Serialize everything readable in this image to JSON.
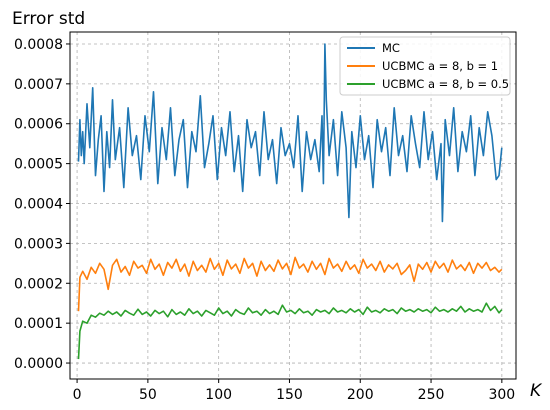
{
  "chart_data": {
    "type": "line",
    "title": "",
    "ylabel": "Error std",
    "xlabel": "K",
    "xlim": [
      -5,
      310
    ],
    "ylim": [
      -4e-05,
      0.00083
    ],
    "x_ticks": [
      0,
      50,
      100,
      150,
      200,
      250,
      300
    ],
    "x_tick_labels": [
      "0",
      "50",
      "100",
      "150",
      "200",
      "250",
      "300"
    ],
    "y_ticks": [
      0.0,
      0.0001,
      0.0002,
      0.0003,
      0.0004,
      0.0005,
      0.0006,
      0.0007,
      0.0008
    ],
    "y_tick_labels": [
      "0.0000",
      "0.0001",
      "0.0002",
      "0.0003",
      "0.0004",
      "0.0005",
      "0.0006",
      "0.0007",
      "0.0008"
    ],
    "grid": true,
    "legend_position": "top-right",
    "series": [
      {
        "name": "MC",
        "color": "#1f77b4",
        "x": [
          1,
          2,
          3,
          4,
          5,
          7,
          9,
          11,
          13,
          15,
          17,
          19,
          21,
          23,
          25,
          27,
          30,
          33,
          36,
          39,
          42,
          45,
          48,
          51,
          54,
          57,
          60,
          63,
          66,
          69,
          72,
          75,
          78,
          81,
          84,
          87,
          90,
          93,
          96,
          99,
          102,
          105,
          108,
          111,
          114,
          117,
          120,
          123,
          126,
          129,
          132,
          135,
          138,
          141,
          144,
          147,
          150,
          153,
          156,
          159,
          162,
          165,
          168,
          171,
          173,
          174,
          175,
          176,
          178,
          181,
          184,
          187,
          190,
          192,
          194,
          197,
          200,
          203,
          206,
          209,
          212,
          215,
          218,
          221,
          224,
          227,
          230,
          233,
          236,
          239,
          242,
          245,
          248,
          251,
          254,
          257,
          258,
          260,
          263,
          266,
          269,
          272,
          275,
          278,
          281,
          284,
          287,
          290,
          293,
          296,
          298,
          300
        ],
        "values": [
          0.000505,
          0.00061,
          0.00052,
          0.00058,
          0.0005,
          0.00065,
          0.00054,
          0.00069,
          0.00047,
          0.00056,
          0.00062,
          0.00043,
          0.00058,
          0.00049,
          0.00066,
          0.00051,
          0.00059,
          0.00044,
          0.00064,
          0.00052,
          0.00057,
          0.00046,
          0.00062,
          0.00053,
          0.00068,
          0.00045,
          0.00059,
          0.00051,
          0.00064,
          0.00047,
          0.00056,
          0.00061,
          0.00044,
          0.00058,
          0.00053,
          0.00067,
          0.00049,
          0.00055,
          0.00062,
          0.00046,
          0.00059,
          0.00052,
          0.00063,
          0.00048,
          0.00057,
          0.00043,
          0.00061,
          0.00054,
          0.00058,
          0.00047,
          0.00063,
          0.00051,
          0.00056,
          0.00045,
          0.00059,
          0.00052,
          0.00055,
          0.00049,
          0.00062,
          0.00043,
          0.00058,
          0.00051,
          0.00056,
          0.00048,
          0.00062,
          0.00045,
          0.0008,
          0.00066,
          0.00052,
          0.00061,
          0.00047,
          0.00063,
          0.00054,
          0.000365,
          0.00058,
          0.00049,
          0.00062,
          0.00051,
          0.00057,
          0.00044,
          0.00061,
          0.00053,
          0.00059,
          0.00047,
          0.00064,
          0.00052,
          0.00057,
          0.00048,
          0.00062,
          0.00055,
          0.00049,
          0.00063,
          0.00051,
          0.00058,
          0.00046,
          0.00055,
          0.000355,
          0.00061,
          0.00052,
          0.00064,
          0.00048,
          0.00058,
          0.00053,
          0.00062,
          0.00047,
          0.00059,
          0.00052,
          0.00063,
          0.00057,
          0.00046,
          0.00047,
          0.00054
        ]
      },
      {
        "name": "UCBMC a = 8, b = 1",
        "color": "#ff7f0e",
        "x": [
          1,
          2,
          4,
          7,
          10,
          13,
          16,
          19,
          22,
          25,
          28,
          31,
          34,
          37,
          40,
          43,
          46,
          49,
          52,
          55,
          58,
          61,
          64,
          67,
          70,
          73,
          76,
          79,
          82,
          85,
          88,
          91,
          94,
          97,
          100,
          103,
          106,
          109,
          112,
          115,
          118,
          121,
          124,
          127,
          130,
          133,
          136,
          139,
          142,
          145,
          148,
          151,
          154,
          157,
          160,
          163,
          166,
          169,
          172,
          175,
          178,
          181,
          184,
          187,
          190,
          193,
          196,
          199,
          202,
          205,
          208,
          211,
          214,
          217,
          220,
          223,
          226,
          229,
          232,
          235,
          238,
          241,
          244,
          247,
          250,
          253,
          256,
          259,
          262,
          265,
          268,
          271,
          274,
          277,
          280,
          283,
          286,
          289,
          292,
          295,
          298,
          300
        ],
        "values": [
          0.00013,
          0.000215,
          0.00023,
          0.00021,
          0.00024,
          0.000225,
          0.00025,
          0.000235,
          0.000185,
          0.000245,
          0.00026,
          0.000228,
          0.000242,
          0.00022,
          0.000255,
          0.000238,
          0.000245,
          0.000225,
          0.00026,
          0.000235,
          0.000248,
          0.00022,
          0.000252,
          0.000238,
          0.00026,
          0.00023,
          0.000248,
          0.000218,
          0.000255,
          0.000232,
          0.000245,
          0.000228,
          0.000262,
          0.000235,
          0.00025,
          0.00022,
          0.000258,
          0.000236,
          0.000248,
          0.000225,
          0.000262,
          0.000238,
          0.00025,
          0.000218,
          0.000255,
          0.000232,
          0.000246,
          0.00023,
          0.000258,
          0.000236,
          0.00025,
          0.000222,
          0.000265,
          0.000238,
          0.000248,
          0.000228,
          0.000255,
          0.000235,
          0.00025,
          0.000222,
          0.000262,
          0.000238,
          0.000248,
          0.00023,
          0.000255,
          0.000235,
          0.000246,
          0.000225,
          0.00026,
          0.000238,
          0.000248,
          0.000232,
          0.000255,
          0.000228,
          0.000246,
          0.000236,
          0.00025,
          0.000222,
          0.000232,
          0.000246,
          0.000205,
          0.000248,
          0.000235,
          0.000252,
          0.000228,
          0.000255,
          0.000238,
          0.00025,
          0.000228,
          0.000258,
          0.000236,
          0.000246,
          0.000232,
          0.000252,
          0.000225,
          0.00025,
          0.000238,
          0.000252,
          0.000232,
          0.00024,
          0.000228,
          0.000235
        ]
      },
      {
        "name": "UCBMC a = 8, b = 0.5",
        "color": "#2ca02c",
        "x": [
          1,
          2,
          4,
          7,
          10,
          13,
          16,
          19,
          22,
          25,
          28,
          31,
          34,
          37,
          40,
          43,
          46,
          49,
          52,
          55,
          58,
          61,
          64,
          67,
          70,
          73,
          76,
          79,
          82,
          85,
          88,
          91,
          94,
          97,
          100,
          103,
          106,
          109,
          112,
          115,
          118,
          121,
          124,
          127,
          130,
          133,
          136,
          139,
          142,
          145,
          148,
          151,
          154,
          157,
          160,
          163,
          166,
          169,
          172,
          175,
          178,
          181,
          184,
          187,
          190,
          193,
          196,
          199,
          202,
          205,
          208,
          211,
          214,
          217,
          220,
          223,
          226,
          229,
          232,
          235,
          238,
          241,
          244,
          247,
          250,
          253,
          256,
          259,
          262,
          265,
          268,
          271,
          274,
          277,
          280,
          283,
          286,
          289,
          292,
          295,
          298,
          300
        ],
        "values": [
          1e-05,
          8e-05,
          0.000105,
          0.0001,
          0.00012,
          0.000115,
          0.000125,
          0.00012,
          0.00013,
          0.000122,
          0.000128,
          0.000118,
          0.000132,
          0.000125,
          0.00012,
          0.000135,
          0.000122,
          0.000128,
          0.000118,
          0.000132,
          0.000124,
          0.00013,
          0.000116,
          0.000134,
          0.000122,
          0.000128,
          0.00012,
          0.000136,
          0.000124,
          0.00013,
          0.000118,
          0.000132,
          0.000126,
          0.00012,
          0.000138,
          0.000124,
          0.00013,
          0.000118,
          0.000134,
          0.000126,
          0.000122,
          0.000138,
          0.000126,
          0.00013,
          0.00012,
          0.000134,
          0.000124,
          0.00013,
          0.000122,
          0.000145,
          0.000128,
          0.000132,
          0.000124,
          0.000136,
          0.000126,
          0.00013,
          0.00012,
          0.000134,
          0.000128,
          0.000132,
          0.000124,
          0.000138,
          0.000128,
          0.000132,
          0.000126,
          0.000136,
          0.000128,
          0.000134,
          0.000122,
          0.00014,
          0.000128,
          0.000132,
          0.000126,
          0.000136,
          0.00013,
          0.000134,
          0.000124,
          0.000138,
          0.00013,
          0.000134,
          0.000128,
          0.000136,
          0.00013,
          0.000134,
          0.000126,
          0.00014,
          0.00013,
          0.000134,
          0.000128,
          0.000136,
          0.00013,
          0.000142,
          0.000128,
          0.000136,
          0.00013,
          0.000134,
          0.000128,
          0.00015,
          0.000132,
          0.000142,
          0.000126,
          0.000134
        ]
      }
    ]
  }
}
